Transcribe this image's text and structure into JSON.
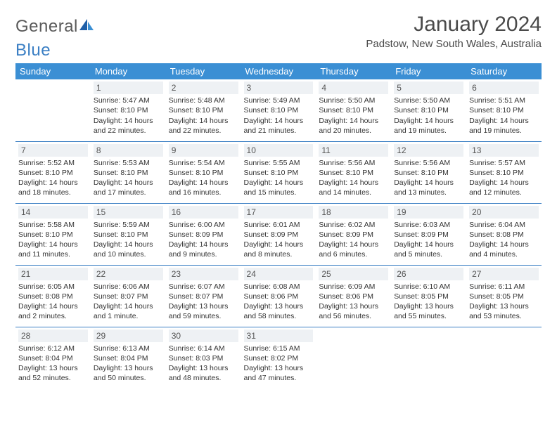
{
  "logo": {
    "part1": "General",
    "part2": "Blue"
  },
  "title": "January 2024",
  "location": "Padstow, New South Wales, Australia",
  "colors": {
    "header_bg": "#3b8fd4",
    "header_text": "#ffffff",
    "rule": "#3b7fc4",
    "daynum_bg": "#eef1f4",
    "logo_gray": "#5a5a5a",
    "logo_blue": "#3b7fc4"
  },
  "weekdays": [
    "Sunday",
    "Monday",
    "Tuesday",
    "Wednesday",
    "Thursday",
    "Friday",
    "Saturday"
  ],
  "weeks": [
    [
      null,
      {
        "n": "1",
        "sr": "Sunrise: 5:47 AM",
        "ss": "Sunset: 8:10 PM",
        "dl": "Daylight: 14 hours and 22 minutes."
      },
      {
        "n": "2",
        "sr": "Sunrise: 5:48 AM",
        "ss": "Sunset: 8:10 PM",
        "dl": "Daylight: 14 hours and 22 minutes."
      },
      {
        "n": "3",
        "sr": "Sunrise: 5:49 AM",
        "ss": "Sunset: 8:10 PM",
        "dl": "Daylight: 14 hours and 21 minutes."
      },
      {
        "n": "4",
        "sr": "Sunrise: 5:50 AM",
        "ss": "Sunset: 8:10 PM",
        "dl": "Daylight: 14 hours and 20 minutes."
      },
      {
        "n": "5",
        "sr": "Sunrise: 5:50 AM",
        "ss": "Sunset: 8:10 PM",
        "dl": "Daylight: 14 hours and 19 minutes."
      },
      {
        "n": "6",
        "sr": "Sunrise: 5:51 AM",
        "ss": "Sunset: 8:10 PM",
        "dl": "Daylight: 14 hours and 19 minutes."
      }
    ],
    [
      {
        "n": "7",
        "sr": "Sunrise: 5:52 AM",
        "ss": "Sunset: 8:10 PM",
        "dl": "Daylight: 14 hours and 18 minutes."
      },
      {
        "n": "8",
        "sr": "Sunrise: 5:53 AM",
        "ss": "Sunset: 8:10 PM",
        "dl": "Daylight: 14 hours and 17 minutes."
      },
      {
        "n": "9",
        "sr": "Sunrise: 5:54 AM",
        "ss": "Sunset: 8:10 PM",
        "dl": "Daylight: 14 hours and 16 minutes."
      },
      {
        "n": "10",
        "sr": "Sunrise: 5:55 AM",
        "ss": "Sunset: 8:10 PM",
        "dl": "Daylight: 14 hours and 15 minutes."
      },
      {
        "n": "11",
        "sr": "Sunrise: 5:56 AM",
        "ss": "Sunset: 8:10 PM",
        "dl": "Daylight: 14 hours and 14 minutes."
      },
      {
        "n": "12",
        "sr": "Sunrise: 5:56 AM",
        "ss": "Sunset: 8:10 PM",
        "dl": "Daylight: 14 hours and 13 minutes."
      },
      {
        "n": "13",
        "sr": "Sunrise: 5:57 AM",
        "ss": "Sunset: 8:10 PM",
        "dl": "Daylight: 14 hours and 12 minutes."
      }
    ],
    [
      {
        "n": "14",
        "sr": "Sunrise: 5:58 AM",
        "ss": "Sunset: 8:10 PM",
        "dl": "Daylight: 14 hours and 11 minutes."
      },
      {
        "n": "15",
        "sr": "Sunrise: 5:59 AM",
        "ss": "Sunset: 8:10 PM",
        "dl": "Daylight: 14 hours and 10 minutes."
      },
      {
        "n": "16",
        "sr": "Sunrise: 6:00 AM",
        "ss": "Sunset: 8:09 PM",
        "dl": "Daylight: 14 hours and 9 minutes."
      },
      {
        "n": "17",
        "sr": "Sunrise: 6:01 AM",
        "ss": "Sunset: 8:09 PM",
        "dl": "Daylight: 14 hours and 8 minutes."
      },
      {
        "n": "18",
        "sr": "Sunrise: 6:02 AM",
        "ss": "Sunset: 8:09 PM",
        "dl": "Daylight: 14 hours and 6 minutes."
      },
      {
        "n": "19",
        "sr": "Sunrise: 6:03 AM",
        "ss": "Sunset: 8:09 PM",
        "dl": "Daylight: 14 hours and 5 minutes."
      },
      {
        "n": "20",
        "sr": "Sunrise: 6:04 AM",
        "ss": "Sunset: 8:08 PM",
        "dl": "Daylight: 14 hours and 4 minutes."
      }
    ],
    [
      {
        "n": "21",
        "sr": "Sunrise: 6:05 AM",
        "ss": "Sunset: 8:08 PM",
        "dl": "Daylight: 14 hours and 2 minutes."
      },
      {
        "n": "22",
        "sr": "Sunrise: 6:06 AM",
        "ss": "Sunset: 8:07 PM",
        "dl": "Daylight: 14 hours and 1 minute."
      },
      {
        "n": "23",
        "sr": "Sunrise: 6:07 AM",
        "ss": "Sunset: 8:07 PM",
        "dl": "Daylight: 13 hours and 59 minutes."
      },
      {
        "n": "24",
        "sr": "Sunrise: 6:08 AM",
        "ss": "Sunset: 8:06 PM",
        "dl": "Daylight: 13 hours and 58 minutes."
      },
      {
        "n": "25",
        "sr": "Sunrise: 6:09 AM",
        "ss": "Sunset: 8:06 PM",
        "dl": "Daylight: 13 hours and 56 minutes."
      },
      {
        "n": "26",
        "sr": "Sunrise: 6:10 AM",
        "ss": "Sunset: 8:05 PM",
        "dl": "Daylight: 13 hours and 55 minutes."
      },
      {
        "n": "27",
        "sr": "Sunrise: 6:11 AM",
        "ss": "Sunset: 8:05 PM",
        "dl": "Daylight: 13 hours and 53 minutes."
      }
    ],
    [
      {
        "n": "28",
        "sr": "Sunrise: 6:12 AM",
        "ss": "Sunset: 8:04 PM",
        "dl": "Daylight: 13 hours and 52 minutes."
      },
      {
        "n": "29",
        "sr": "Sunrise: 6:13 AM",
        "ss": "Sunset: 8:04 PM",
        "dl": "Daylight: 13 hours and 50 minutes."
      },
      {
        "n": "30",
        "sr": "Sunrise: 6:14 AM",
        "ss": "Sunset: 8:03 PM",
        "dl": "Daylight: 13 hours and 48 minutes."
      },
      {
        "n": "31",
        "sr": "Sunrise: 6:15 AM",
        "ss": "Sunset: 8:02 PM",
        "dl": "Daylight: 13 hours and 47 minutes."
      },
      null,
      null,
      null
    ]
  ]
}
